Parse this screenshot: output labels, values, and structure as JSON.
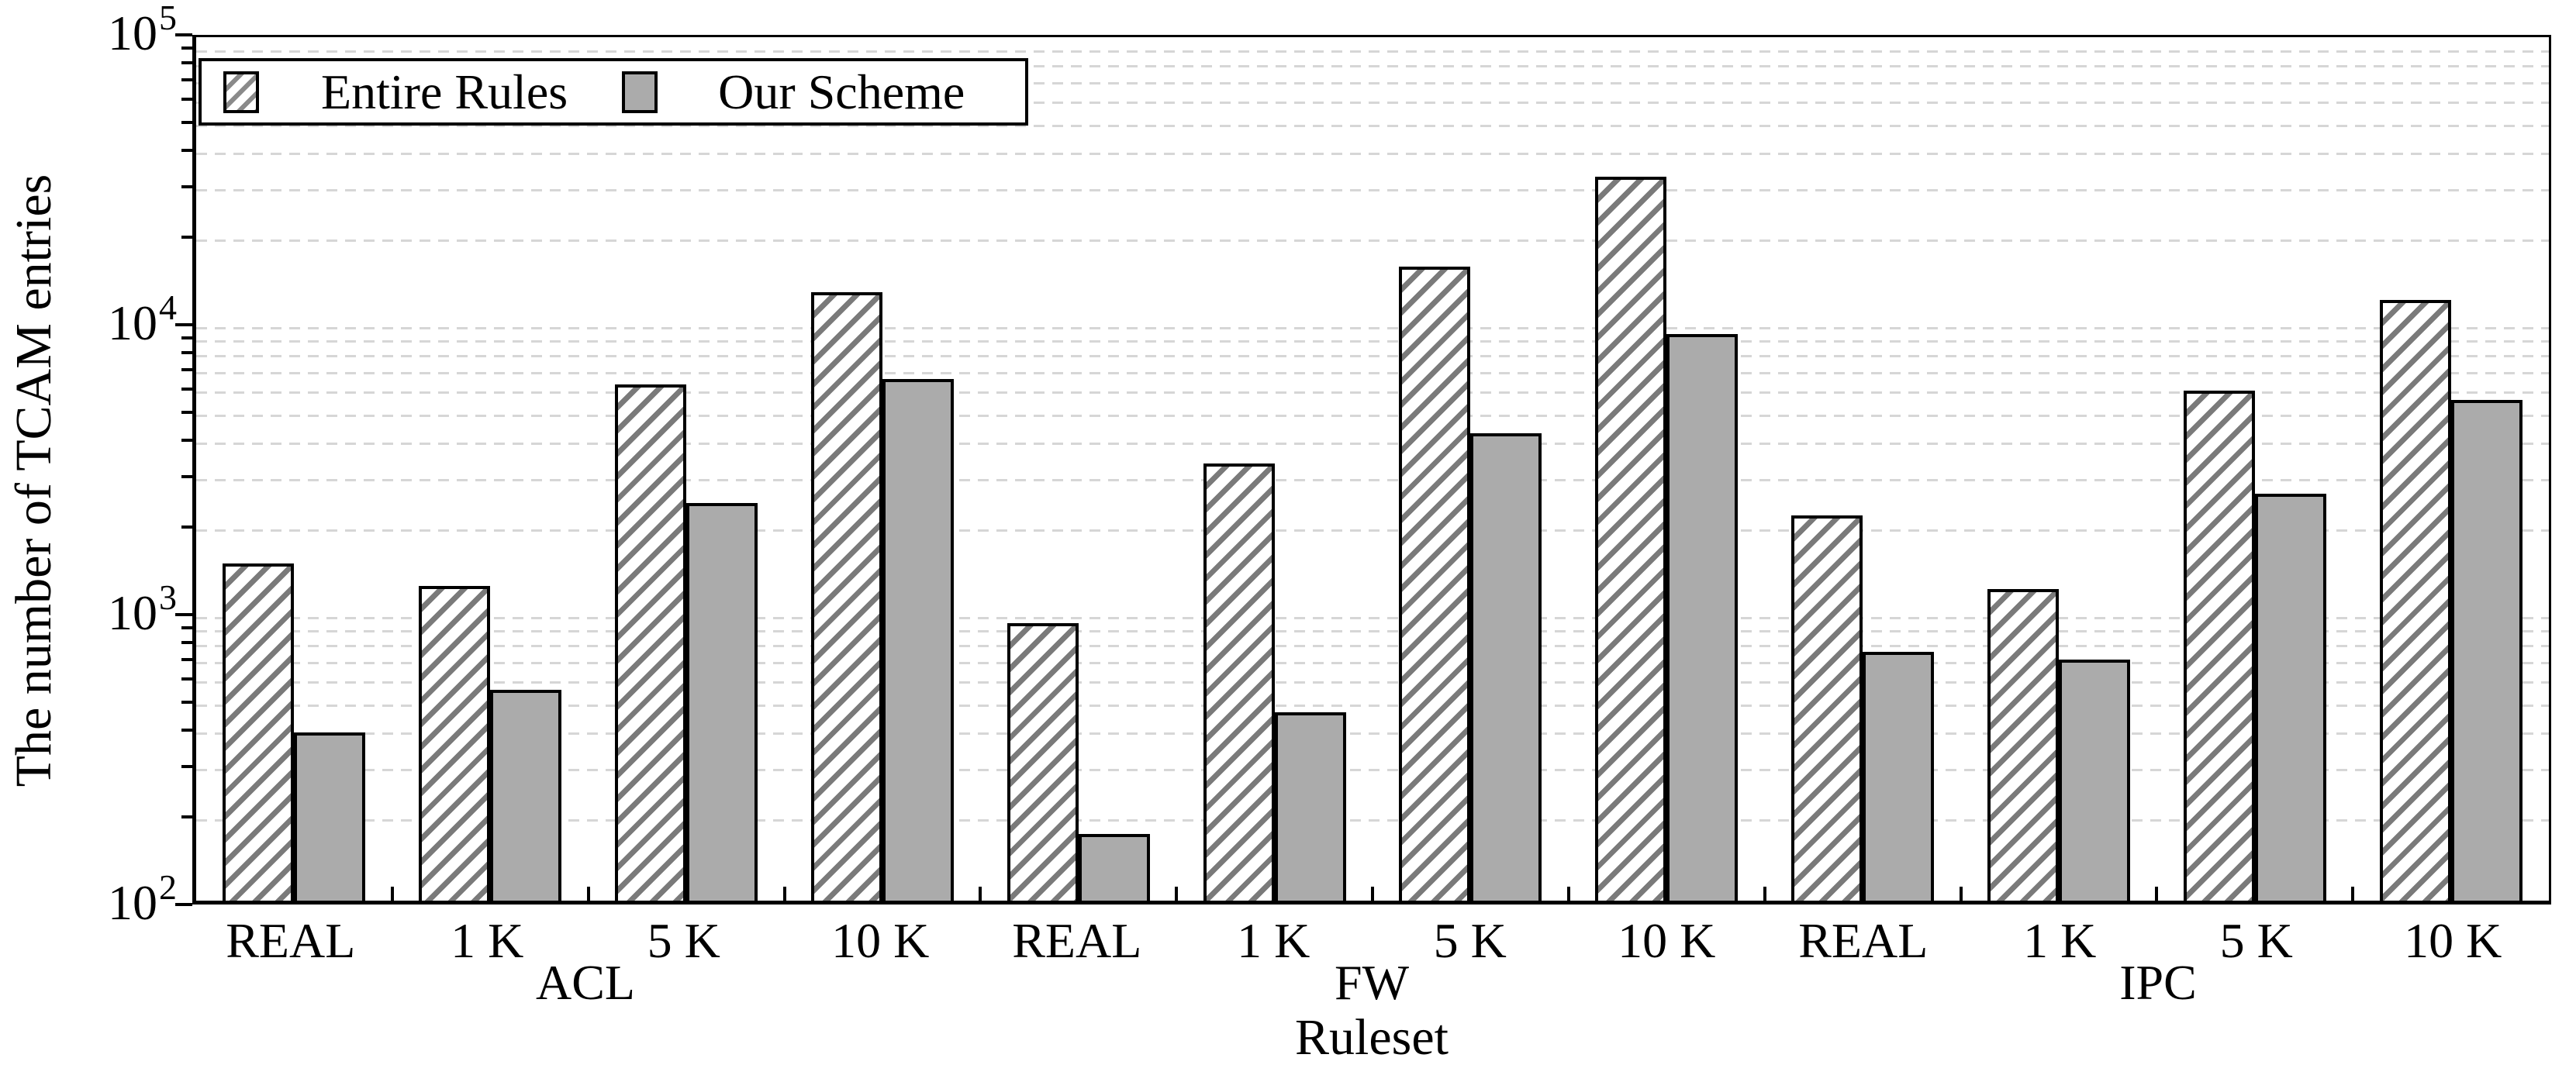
{
  "colors": {
    "bar_gray_fill": "#ababab",
    "hatch_line": "#7a7a7a",
    "bar_border": "#000000",
    "gridline": "#d6d6d6",
    "axis": "#000000",
    "background": "#ffffff"
  },
  "chart_data": {
    "type": "bar",
    "y_scale": "log10",
    "ylim": [
      100,
      100000
    ],
    "ylabel": "The number of TCAM entries",
    "xlabel": "Ruleset",
    "grid": "horizontal dashed minor + decade lines",
    "legend_position": "top-left inside plot",
    "groups": [
      "ACL",
      "FW",
      "IPC"
    ],
    "categories_per_group": [
      "REAL",
      "1 K",
      "5 K",
      "10 K"
    ],
    "y_tick_exponents": [
      2,
      3,
      4,
      5
    ],
    "series": [
      {
        "name": "Entire Rules",
        "style": "hatched",
        "values": [
          1480,
          1240,
          6200,
          13000,
          920,
          3300,
          16000,
          32700,
          2180,
          1210,
          5900,
          12200
        ]
      },
      {
        "name": "Our Scheme",
        "style": "solid-gray",
        "values": [
          385,
          540,
          2400,
          6500,
          170,
          450,
          4200,
          9300,
          730,
          690,
          2600,
          5500
        ]
      }
    ]
  }
}
